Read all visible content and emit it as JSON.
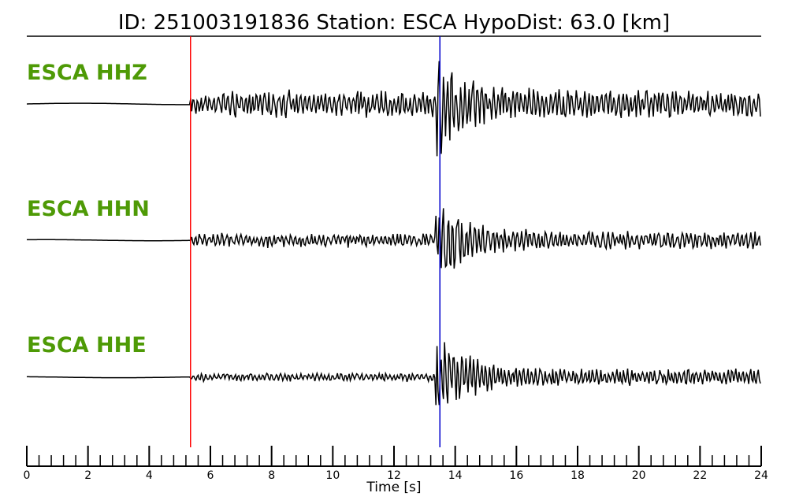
{
  "header": {
    "title": "ID: 251003191836   Station: ESCA   HypoDist:     63.0 [km]"
  },
  "colors": {
    "channel_label": "#4e9a06",
    "p_pick": "#ff0000",
    "s_pick": "#0000cc",
    "trace": "#000000"
  },
  "chart_data": {
    "type": "line",
    "title": "ID: 251003191836   Station: ESCA   HypoDist:     63.0 [km]",
    "xlabel": "Time [s]",
    "ylabel": "",
    "xlim": [
      0,
      24
    ],
    "x_ticks": [
      0,
      2,
      4,
      6,
      8,
      10,
      12,
      14,
      16,
      18,
      20,
      22,
      24
    ],
    "minor_tick_step": 0.4,
    "picks": [
      {
        "phase": "P",
        "time": 5.35,
        "color": "#ff0000"
      },
      {
        "phase": "S",
        "time": 13.5,
        "color": "#0000cc"
      }
    ],
    "series": [
      {
        "name": "ESCA HHZ",
        "pre_amp": 0.04,
        "p_amp": 0.28,
        "s_amp": 1.0,
        "coda_amp": 0.25,
        "seed": 11
      },
      {
        "name": "ESCA HHN",
        "pre_amp": 0.03,
        "p_amp": 0.14,
        "s_amp": 1.0,
        "coda_amp": 0.16,
        "seed": 23
      },
      {
        "name": "ESCA HHE",
        "pre_amp": 0.03,
        "p_amp": 0.09,
        "s_amp": 1.0,
        "coda_amp": 0.16,
        "seed": 37
      }
    ],
    "grid": false
  }
}
